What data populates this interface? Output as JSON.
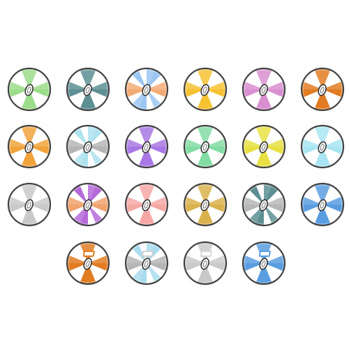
{
  "discs": [
    {
      "id": "disc-1",
      "row": 1,
      "colors": [
        "#9bdc8a",
        "#ffffff"
      ],
      "has_tag": false
    },
    {
      "id": "disc-2",
      "row": 1,
      "colors": [
        "#5d8f93",
        "#ffffff"
      ],
      "has_tag": false
    },
    {
      "id": "disc-3",
      "row": 1,
      "colors": [
        "#9bc6f2",
        "#f3ab74",
        "#ffffff"
      ],
      "has_tag": false
    },
    {
      "id": "disc-4",
      "row": 1,
      "colors": [
        "#f6c232",
        "#ffffff"
      ],
      "has_tag": false
    },
    {
      "id": "disc-5",
      "row": 1,
      "colors": [
        "#d88fd0",
        "#ffffff"
      ],
      "has_tag": false
    },
    {
      "id": "disc-6",
      "row": 1,
      "colors": [
        "#e17c22",
        "#ffffff"
      ],
      "has_tag": false
    },
    {
      "id": "disc-7",
      "row": 2,
      "colors": [
        "#f1a33b",
        "#ffffff"
      ],
      "has_tag": false
    },
    {
      "id": "disc-8",
      "row": 2,
      "colors": [
        "#aee2ee",
        "#b5b5b5",
        "#ffffff"
      ],
      "has_tag": false
    },
    {
      "id": "disc-9",
      "row": 2,
      "colors": [
        "#a877e4",
        "#ffffff"
      ],
      "has_tag": false
    },
    {
      "id": "disc-10",
      "row": 2,
      "colors": [
        "#82dca4",
        "#ffffff"
      ],
      "has_tag": false
    },
    {
      "id": "disc-11",
      "row": 2,
      "colors": [
        "#e8e043",
        "#ffffff"
      ],
      "has_tag": false
    },
    {
      "id": "disc-12",
      "row": 2,
      "colors": [
        "#a9e5f2",
        "#ffffff"
      ],
      "has_tag": false
    },
    {
      "id": "disc-13",
      "row": 3,
      "colors": [
        "#c9c9c9",
        "#ffffff"
      ],
      "has_tag": false
    },
    {
      "id": "disc-14",
      "row": 3,
      "colors": [
        "#b46ad9",
        "#f1a26c",
        "#ffffff"
      ],
      "has_tag": false
    },
    {
      "id": "disc-15",
      "row": 3,
      "colors": [
        "#f5a7a4",
        "#ffffff"
      ],
      "has_tag": false
    },
    {
      "id": "disc-16",
      "row": 3,
      "colors": [
        "#d9b24d",
        "#ffffff"
      ],
      "has_tag": false
    },
    {
      "id": "disc-17",
      "row": 3,
      "colors": [
        "#5d8f93",
        "#b7b7b7",
        "#ffffff"
      ],
      "has_tag": false
    },
    {
      "id": "disc-18",
      "row": 3,
      "colors": [
        "#5a9de0",
        "#ffffff"
      ],
      "has_tag": false
    },
    {
      "id": "disc-19",
      "row": 4,
      "colors": [
        "#e17c22",
        "#ffffff"
      ],
      "has_tag": true,
      "tag_color": "#e17c22"
    },
    {
      "id": "disc-20",
      "row": 4,
      "colors": [
        "#a9dcef",
        "#b5b5b5",
        "#ffffff"
      ],
      "has_tag": true,
      "tag_color": "#cfcfcf"
    },
    {
      "id": "disc-21",
      "row": 4,
      "colors": [
        "#c9c9c9",
        "#ffffff"
      ],
      "has_tag": true,
      "tag_color": "#d6d6d6"
    },
    {
      "id": "disc-22",
      "row": 4,
      "colors": [
        "#5a9de0",
        "#ffffff"
      ],
      "has_tag": true,
      "tag_color": "#5a9de0"
    }
  ]
}
